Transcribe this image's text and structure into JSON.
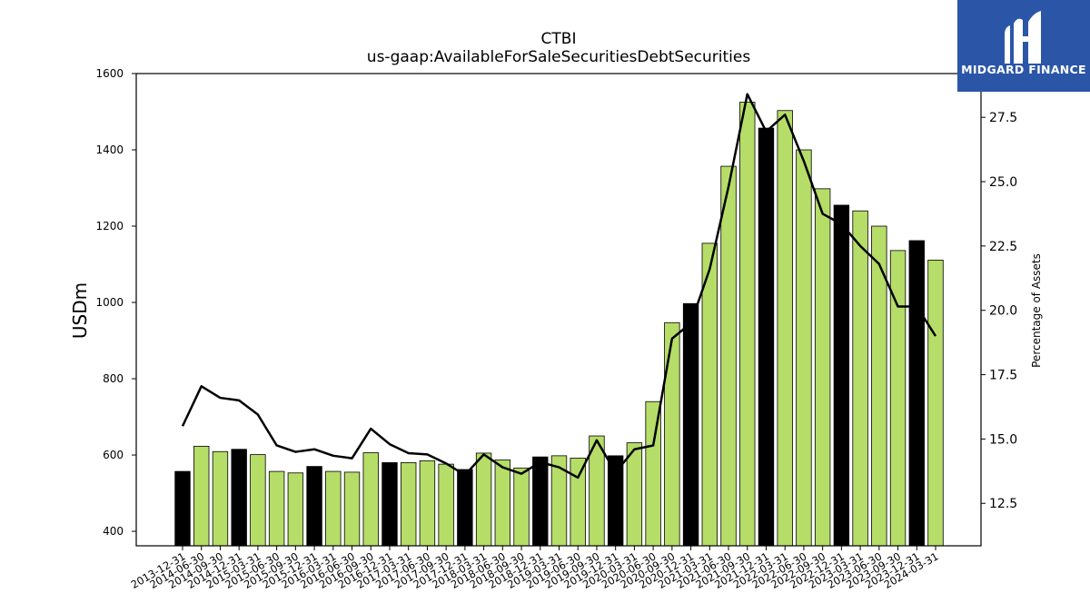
{
  "brand": {
    "name": "MIDGARD FINANCE",
    "bg_color": "#2b56a8"
  },
  "colors": {
    "bar_default": "#b5dd68",
    "bar_highlight": "#000000",
    "line": "#000000"
  },
  "chart_data": {
    "type": "bar",
    "title": "CTBI",
    "subtitle": "us-gaap:AvailableForSaleSecuritiesDebtSecurities",
    "ylabel": "USDm",
    "y2label": "Percentage of Assets",
    "ylim": [
      362,
      1600
    ],
    "y2lim": [
      10.85,
      29.2
    ],
    "yticks": [
      400,
      600,
      800,
      1000,
      1200,
      1400,
      1600
    ],
    "y2ticks": [
      12.5,
      15.0,
      17.5,
      20.0,
      22.5,
      25.0,
      27.5
    ],
    "categories": [
      "2013-12-31",
      "2014-06-30",
      "2014-09-30",
      "2014-12-31",
      "2015-03-31",
      "2015-06-30",
      "2015-09-30",
      "2015-12-31",
      "2016-03-31",
      "2016-06-30",
      "2016-09-30",
      "2016-12-31",
      "2017-03-31",
      "2017-06-30",
      "2017-09-30",
      "2017-12-31",
      "2018-03-31",
      "2018-06-30",
      "2018-09-30",
      "2018-12-31",
      "2019-03-31",
      "2019-06-30",
      "2019-09-30",
      "2019-12-31",
      "2020-03-31",
      "2020-06-30",
      "2020-09-30",
      "2020-12-31",
      "2021-03-31",
      "2021-06-30",
      "2021-09-30",
      "2021-12-31",
      "2022-03-31",
      "2022-06-30",
      "2022-09-30",
      "2022-12-31",
      "2023-03-31",
      "2023-06-30",
      "2023-09-30",
      "2023-12-31",
      "2024-03-31"
    ],
    "series": [
      {
        "values": [
          557,
          623,
          609,
          615,
          601,
          557,
          553,
          570,
          557,
          555,
          606,
          580,
          580,
          585,
          576,
          562,
          605,
          587,
          566,
          595,
          598,
          592,
          650,
          598,
          632,
          740,
          947,
          997,
          1155,
          1357,
          1525,
          1457,
          1503,
          1400,
          1298,
          1255,
          1240,
          1200,
          1136,
          1162,
          1111
        ],
        "highlight": [
          true,
          false,
          false,
          true,
          false,
          false,
          false,
          true,
          false,
          false,
          false,
          true,
          false,
          false,
          false,
          true,
          false,
          false,
          false,
          true,
          false,
          false,
          false,
          true,
          false,
          false,
          false,
          true,
          false,
          false,
          false,
          true,
          false,
          false,
          false,
          true,
          false,
          false,
          false,
          true,
          false
        ]
      },
      {
        "axis": "right",
        "type": "line",
        "values": [
          15.5,
          17.05,
          16.6,
          16.5,
          15.95,
          14.75,
          14.5,
          14.6,
          14.35,
          14.25,
          15.4,
          14.8,
          14.45,
          14.4,
          14.05,
          13.6,
          14.4,
          13.9,
          13.65,
          14.1,
          13.9,
          13.5,
          14.95,
          13.7,
          14.6,
          14.75,
          18.9,
          19.5,
          21.6,
          24.8,
          28.4,
          26.95,
          27.6,
          25.8,
          23.75,
          23.35,
          22.5,
          21.8,
          20.15,
          20.15,
          19.0
        ]
      }
    ],
    "grid": false
  }
}
